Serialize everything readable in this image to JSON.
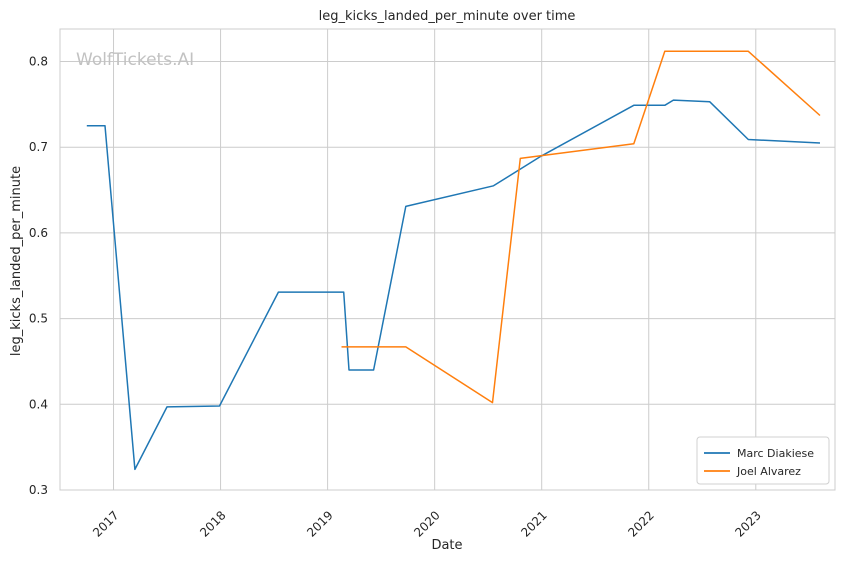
{
  "chart_data": {
    "type": "line",
    "title": "leg_kicks_landed_per_minute over time",
    "xlabel": "Date",
    "ylabel": "leg_kicks_landed_per_minute",
    "watermark": "WolfTickets.AI",
    "xlim": [
      2016.5,
      2023.74
    ],
    "ylim": [
      0.3,
      0.838
    ],
    "x_ticks": [
      2017,
      2018,
      2019,
      2020,
      2021,
      2022,
      2023
    ],
    "y_ticks": [
      0.3,
      0.4,
      0.5,
      0.6,
      0.7,
      0.8
    ],
    "grid": true,
    "legend_position": "bottom-right",
    "series": [
      {
        "name": "Marc Diakiese",
        "color": "#1f77b4",
        "points": [
          [
            2016.75,
            0.725
          ],
          [
            2016.92,
            0.725
          ],
          [
            2017.2,
            0.324
          ],
          [
            2017.5,
            0.397
          ],
          [
            2017.99,
            0.398
          ],
          [
            2018.54,
            0.531
          ],
          [
            2019.15,
            0.531
          ],
          [
            2019.2,
            0.44
          ],
          [
            2019.43,
            0.44
          ],
          [
            2019.73,
            0.631
          ],
          [
            2020.55,
            0.655
          ],
          [
            2021.0,
            0.69
          ],
          [
            2021.86,
            0.749
          ],
          [
            2022.15,
            0.749
          ],
          [
            2022.23,
            0.755
          ],
          [
            2022.57,
            0.753
          ],
          [
            2022.93,
            0.709
          ],
          [
            2023.6,
            0.705
          ]
        ]
      },
      {
        "name": "Joel Alvarez",
        "color": "#ff7f0e",
        "points": [
          [
            2019.13,
            0.467
          ],
          [
            2019.73,
            0.467
          ],
          [
            2020.54,
            0.402
          ],
          [
            2020.8,
            0.687
          ],
          [
            2021.86,
            0.704
          ],
          [
            2022.15,
            0.812
          ],
          [
            2022.93,
            0.812
          ],
          [
            2023.6,
            0.737
          ]
        ]
      }
    ]
  }
}
